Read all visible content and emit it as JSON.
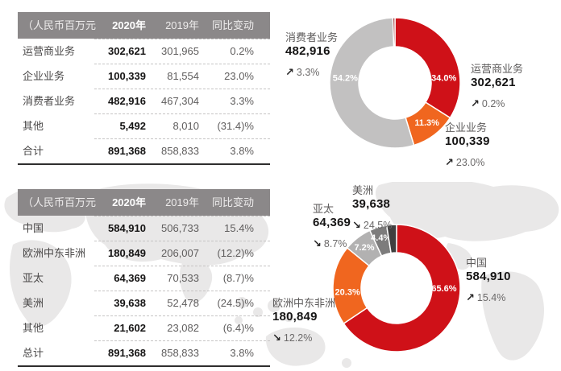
{
  "table_by_business": {
    "columns": [
      "（人民币百万元）",
      "2020年",
      "2019年",
      "同比变动"
    ],
    "rows": [
      {
        "label": "运营商业务",
        "v2020": "302,621",
        "v2019": "301,965",
        "change": "0.2%"
      },
      {
        "label": "企业业务",
        "v2020": "100,339",
        "v2019": "81,554",
        "change": "23.0%"
      },
      {
        "label": "消费者业务",
        "v2020": "482,916",
        "v2019": "467,304",
        "change": "3.3%"
      },
      {
        "label": "其他",
        "v2020": "5,492",
        "v2019": "8,010",
        "change": "(31.4)%"
      },
      {
        "label": "合计",
        "v2020": "891,368",
        "v2019": "858,833",
        "change": "3.8%",
        "total": true
      }
    ]
  },
  "table_by_region": {
    "columns": [
      "（人民币百万元）",
      "2020年",
      "2019年",
      "同比变动"
    ],
    "rows": [
      {
        "label": "中国",
        "v2020": "584,910",
        "v2019": "506,733",
        "change": "15.4%"
      },
      {
        "label": "欧洲中东非洲",
        "v2020": "180,849",
        "v2019": "206,007",
        "change": "(12.2)%"
      },
      {
        "label": "亚太",
        "v2020": "64,369",
        "v2019": "70,533",
        "change": "(8.7)%"
      },
      {
        "label": "美洲",
        "v2020": "39,638",
        "v2019": "52,478",
        "change": "(24.5)%"
      },
      {
        "label": "其他",
        "v2020": "21,602",
        "v2019": "23,082",
        "change": "(6.4)%"
      },
      {
        "label": "总计",
        "v2020": "891,368",
        "v2019": "858,833",
        "change": "3.8%",
        "total": true
      }
    ]
  },
  "chart_data": [
    {
      "type": "pie",
      "subtype": "donut",
      "legend_position": "callouts",
      "unit": "人民币百万元",
      "segments": [
        {
          "id": "carrier-business",
          "label": "运营商业务",
          "value": 302621,
          "value_display": "302,621",
          "pct": 34.0,
          "pct_label": "34.0%",
          "arrow": "↗",
          "change": "0.2%",
          "color": "#cf1118",
          "label_angle": 84,
          "label_radius": 61
        },
        {
          "id": "enterprise-business",
          "label": "企业业务",
          "value": 100339,
          "value_display": "100,339",
          "pct": 11.3,
          "pct_label": "11.3%",
          "arrow": "↗",
          "change": "23.0%",
          "color": "#f0661f",
          "label_angle": 141,
          "label_radius": 63
        },
        {
          "id": "consumer-business",
          "label": "消费者业务",
          "value": 482916,
          "value_display": "482,916",
          "pct": 54.2,
          "pct_label": "54.2%",
          "arrow": "↗",
          "change": "3.3%",
          "color": "#c2c1c1",
          "label_angle": 276,
          "label_radius": 62
        },
        {
          "id": "other",
          "label": "其他",
          "value": 5492,
          "value_display": "5,492",
          "pct": 0.5,
          "pct_label": "",
          "color": "#8e1212"
        }
      ]
    },
    {
      "type": "pie",
      "subtype": "donut",
      "legend_position": "callouts",
      "unit": "人民币百万元",
      "segments": [
        {
          "id": "china",
          "label": "中国",
          "value": 584910,
          "value_display": "584,910",
          "pct": 65.6,
          "pct_label": "65.6%",
          "arrow": "↗",
          "change": "15.4%",
          "color": "#cf1118",
          "label_angle": 90,
          "label_radius": 59
        },
        {
          "id": "emea",
          "label": "欧洲中东非洲",
          "value": 180849,
          "value_display": "180,849",
          "pct": 20.3,
          "pct_label": "20.3%",
          "arrow": "↘",
          "change": "12.2%",
          "color": "#f0661f",
          "label_angle": 266,
          "label_radius": 61
        },
        {
          "id": "asia-pacific",
          "label": "亚太",
          "value": 64369,
          "value_display": "64,369",
          "pct": 7.2,
          "pct_label": "7.2%",
          "arrow": "↘",
          "change": "8.7%",
          "color": "#b2b1b1",
          "label_angle": 322,
          "label_radius": 65
        },
        {
          "id": "americas",
          "label": "美洲",
          "value": 39638,
          "value_display": "39,638",
          "pct": 4.4,
          "pct_label": "4.4%",
          "arrow": "↘",
          "change": "24.5%",
          "color": "#7d7c7c",
          "label_angle": 343,
          "label_radius": 66
        },
        {
          "id": "other",
          "label": "其他",
          "value": 21602,
          "value_display": "21,602",
          "pct": 2.5,
          "pct_label": "",
          "color": "#403f3f"
        }
      ]
    }
  ]
}
